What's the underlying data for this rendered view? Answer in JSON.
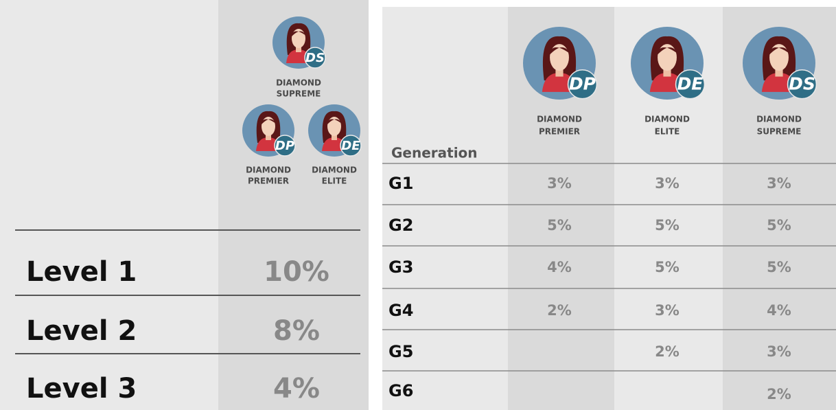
{
  "left_panel": {
    "tiers": [
      {
        "badge": "DS",
        "name": [
          "DIAMOND",
          "SUPREME"
        ]
      },
      {
        "badge": "DP",
        "name": [
          "DIAMOND",
          "PREMIER"
        ]
      },
      {
        "badge": "DE",
        "name": [
          "DIAMOND",
          "ELITE"
        ]
      }
    ],
    "rows": [
      {
        "label": "Level 1",
        "value": "10%"
      },
      {
        "label": "Level 2",
        "value": "8%"
      },
      {
        "label": "Level 3",
        "value": "4%"
      }
    ]
  },
  "right_panel": {
    "header": "Generation",
    "columns": [
      {
        "badge": "DP",
        "name": [
          "DIAMOND",
          "PREMIER"
        ]
      },
      {
        "badge": "DE",
        "name": [
          "DIAMOND",
          "ELITE"
        ]
      },
      {
        "badge": "DS",
        "name": [
          "DIAMOND",
          "SUPREME"
        ]
      }
    ],
    "rows": [
      {
        "label": "G1",
        "cells": [
          "3%",
          "3%",
          "3%"
        ]
      },
      {
        "label": "G2",
        "cells": [
          "5%",
          "5%",
          "5%"
        ]
      },
      {
        "label": "G3",
        "cells": [
          "4%",
          "5%",
          "5%"
        ]
      },
      {
        "label": "G4",
        "cells": [
          "2%",
          "3%",
          "4%"
        ]
      },
      {
        "label": "G5",
        "cells": [
          null,
          "2%",
          "3%"
        ]
      },
      {
        "label": "G6",
        "cells": [
          null,
          null,
          "2%"
        ]
      }
    ]
  }
}
